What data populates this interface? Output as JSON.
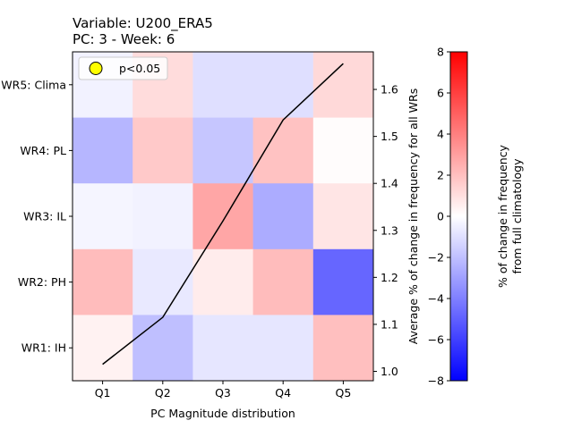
{
  "chart_data": {
    "type": "heatmap",
    "title_line1": "Variable: U200_ERA5",
    "title_line2": "PC: 3 - Week: 6",
    "xlabel": "PC Magnitude distribution",
    "ylabel_right": "Average % of change in frequency for all WRs",
    "colorbar_label_line1": "% of change in frequency",
    "colorbar_label_line2": "from full climatology",
    "x_categories": [
      "Q1",
      "Q2",
      "Q3",
      "Q4",
      "Q5"
    ],
    "y_categories_top_to_bottom": [
      "WR5: Clima",
      "WR4: PL",
      "WR3: IL",
      "WR2: PH",
      "WR1: IH"
    ],
    "values_top_to_bottom": [
      [
        -0.4,
        1.1,
        -1.0,
        -1.0,
        1.2
      ],
      [
        -2.3,
        1.7,
        -1.8,
        1.9,
        0.1
      ],
      [
        -0.3,
        -0.4,
        2.8,
        -2.6,
        0.8
      ],
      [
        2.1,
        -0.7,
        0.6,
        2.1,
        -4.8
      ],
      [
        0.4,
        -2.0,
        -0.8,
        -0.8,
        2.0
      ]
    ],
    "color_scale": {
      "min": -8,
      "max": 8,
      "low_color": "#0000ff",
      "mid_color": "#ffffff",
      "high_color": "#ff0000"
    },
    "colorbar_ticks": [
      -8,
      -6,
      -4,
      -2,
      0,
      2,
      4,
      6,
      8
    ],
    "line_series": {
      "x_categories": [
        "Q1",
        "Q2",
        "Q3",
        "Q4",
        "Q5"
      ],
      "values": [
        1.015,
        1.115,
        1.32,
        1.535,
        1.655
      ],
      "color": "#000000"
    },
    "right_axis_ticks": [
      1.0,
      1.1,
      1.2,
      1.3,
      1.4,
      1.5,
      1.6
    ],
    "right_axis_range": [
      0.98,
      1.68
    ],
    "legend": {
      "label": "p<0.05",
      "marker_color": "#ffff00",
      "position": "top-left"
    }
  }
}
